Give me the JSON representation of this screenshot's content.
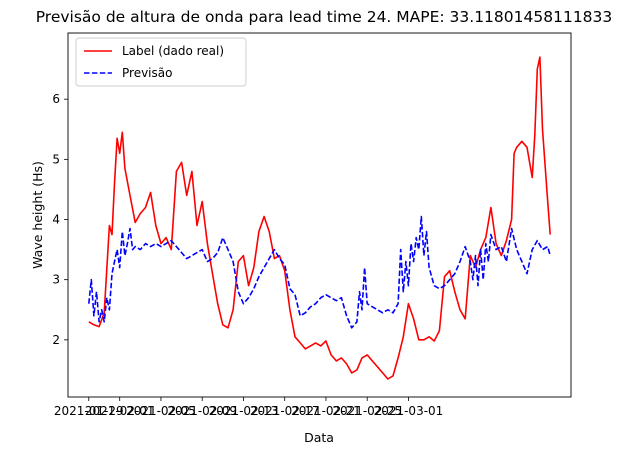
{
  "chart_data": {
    "type": "line",
    "title": "Previsão de altura de onda para lead time 24. MAPE: 33.11801458111833",
    "xlabel": "Data",
    "ylabel": "Wave height (Hs)",
    "x_ticks": [
      "2021-01-29",
      "2021-02-01",
      "2021-02-05",
      "2021-02-09",
      "2021-02-13",
      "2021-02-17",
      "2021-02-21",
      "2021-02-25",
      "2021-03-01"
    ],
    "y_ticks": [
      "2",
      "3",
      "4",
      "5",
      "6"
    ],
    "ylim": [
      1.05,
      7.1
    ],
    "legend_position": "top-left",
    "grid": false,
    "series": [
      {
        "name": "Label (dado real)",
        "color": "#ff0000",
        "style": "solid",
        "points": [
          [
            "2021-01-29T00",
            2.3
          ],
          [
            "2021-01-29T12",
            2.25
          ],
          [
            "2021-01-30T00",
            2.22
          ],
          [
            "2021-01-30T12",
            2.45
          ],
          [
            "2021-01-31T00",
            3.9
          ],
          [
            "2021-01-31T06",
            3.75
          ],
          [
            "2021-01-31T12",
            4.6
          ],
          [
            "2021-01-31T18",
            5.35
          ],
          [
            "2021-02-01T00",
            5.1
          ],
          [
            "2021-02-01T06",
            5.45
          ],
          [
            "2021-02-01T12",
            4.85
          ],
          [
            "2021-02-02T00",
            4.4
          ],
          [
            "2021-02-02T12",
            3.95
          ],
          [
            "2021-02-03T00",
            4.1
          ],
          [
            "2021-02-03T12",
            4.2
          ],
          [
            "2021-02-04T00",
            4.45
          ],
          [
            "2021-02-04T12",
            3.9
          ],
          [
            "2021-02-05T00",
            3.6
          ],
          [
            "2021-02-05T12",
            3.7
          ],
          [
            "2021-02-06T00",
            3.5
          ],
          [
            "2021-02-06T12",
            4.8
          ],
          [
            "2021-02-07T00",
            4.95
          ],
          [
            "2021-02-07T12",
            4.4
          ],
          [
            "2021-02-08T00",
            4.8
          ],
          [
            "2021-02-08T12",
            3.9
          ],
          [
            "2021-02-09T00",
            4.3
          ],
          [
            "2021-02-09T12",
            3.6
          ],
          [
            "2021-02-10T00",
            3.1
          ],
          [
            "2021-02-10T12",
            2.6
          ],
          [
            "2021-02-11T00",
            2.25
          ],
          [
            "2021-02-11T12",
            2.2
          ],
          [
            "2021-02-12T00",
            2.5
          ],
          [
            "2021-02-12T12",
            3.3
          ],
          [
            "2021-02-13T00",
            3.4
          ],
          [
            "2021-02-13T12",
            2.9
          ],
          [
            "2021-02-14T00",
            3.2
          ],
          [
            "2021-02-14T12",
            3.8
          ],
          [
            "2021-02-15T00",
            4.05
          ],
          [
            "2021-02-15T12",
            3.8
          ],
          [
            "2021-02-16T00",
            3.35
          ],
          [
            "2021-02-16T12",
            3.4
          ],
          [
            "2021-02-17T00",
            3.15
          ],
          [
            "2021-02-17T12",
            2.5
          ],
          [
            "2021-02-18T00",
            2.05
          ],
          [
            "2021-02-18T12",
            1.95
          ],
          [
            "2021-02-19T00",
            1.85
          ],
          [
            "2021-02-19T12",
            1.9
          ],
          [
            "2021-02-20T00",
            1.95
          ],
          [
            "2021-02-20T12",
            1.9
          ],
          [
            "2021-02-21T00",
            1.98
          ],
          [
            "2021-02-21T12",
            1.75
          ],
          [
            "2021-02-22T00",
            1.65
          ],
          [
            "2021-02-22T12",
            1.7
          ],
          [
            "2021-02-23T00",
            1.6
          ],
          [
            "2021-02-23T12",
            1.45
          ],
          [
            "2021-02-24T00",
            1.5
          ],
          [
            "2021-02-24T12",
            1.7
          ],
          [
            "2021-02-25T00",
            1.75
          ],
          [
            "2021-02-25T12",
            1.65
          ],
          [
            "2021-02-26T00",
            1.55
          ],
          [
            "2021-02-26T12",
            1.45
          ],
          [
            "2021-02-27T00",
            1.35
          ],
          [
            "2021-02-27T12",
            1.4
          ],
          [
            "2021-02-28T00",
            1.7
          ],
          [
            "2021-02-28T12",
            2.05
          ],
          [
            "2021-03-01T00",
            2.6
          ],
          [
            "2021-03-01T12",
            2.35
          ],
          [
            "2021-03-02T00",
            2.0
          ],
          [
            "2021-03-02T12",
            2.0
          ],
          [
            "2021-03-03T00",
            2.05
          ],
          [
            "2021-03-03T12",
            1.98
          ],
          [
            "2021-03-04T00",
            2.15
          ],
          [
            "2021-03-04T12",
            3.05
          ],
          [
            "2021-03-05T00",
            3.15
          ],
          [
            "2021-03-05T12",
            2.8
          ],
          [
            "2021-03-06T00",
            2.5
          ],
          [
            "2021-03-06T12",
            2.35
          ],
          [
            "2021-03-07T00",
            3.4
          ],
          [
            "2021-03-07T12",
            3.2
          ],
          [
            "2021-03-08T00",
            3.5
          ],
          [
            "2021-03-08T12",
            3.7
          ],
          [
            "2021-03-09T00",
            4.2
          ],
          [
            "2021-03-09T12",
            3.6
          ],
          [
            "2021-03-10T00",
            3.4
          ],
          [
            "2021-03-10T12",
            3.65
          ],
          [
            "2021-03-11T00",
            4.0
          ],
          [
            "2021-03-11T06",
            5.1
          ],
          [
            "2021-03-11T12",
            5.2
          ],
          [
            "2021-03-12T00",
            5.3
          ],
          [
            "2021-03-12T12",
            5.2
          ],
          [
            "2021-03-13T00",
            4.7
          ],
          [
            "2021-03-13T06",
            5.4
          ],
          [
            "2021-03-13T12",
            6.5
          ],
          [
            "2021-03-13T18",
            6.7
          ],
          [
            "2021-03-14T00",
            5.5
          ],
          [
            "2021-03-14T12",
            4.3
          ],
          [
            "2021-03-14T18",
            3.75
          ]
        ]
      },
      {
        "name": "Previsão",
        "color": "#0000ff",
        "style": "dashed",
        "points": [
          [
            "2021-01-29T00",
            2.6
          ],
          [
            "2021-01-29T06",
            3.0
          ],
          [
            "2021-01-29T12",
            2.4
          ],
          [
            "2021-01-29T18",
            2.8
          ],
          [
            "2021-01-30T00",
            2.3
          ],
          [
            "2021-01-30T06",
            2.5
          ],
          [
            "2021-01-30T12",
            2.3
          ],
          [
            "2021-01-30T18",
            2.7
          ],
          [
            "2021-01-31T00",
            2.5
          ],
          [
            "2021-01-31T06",
            3.1
          ],
          [
            "2021-01-31T12",
            3.3
          ],
          [
            "2021-01-31T18",
            3.5
          ],
          [
            "2021-02-01T00",
            3.2
          ],
          [
            "2021-02-01T06",
            3.8
          ],
          [
            "2021-02-01T12",
            3.4
          ],
          [
            "2021-02-01T18",
            3.6
          ],
          [
            "2021-02-02T00",
            3.85
          ],
          [
            "2021-02-02T06",
            3.5
          ],
          [
            "2021-02-02T12",
            3.55
          ],
          [
            "2021-02-03T00",
            3.5
          ],
          [
            "2021-02-03T12",
            3.6
          ],
          [
            "2021-02-04T00",
            3.55
          ],
          [
            "2021-02-04T12",
            3.6
          ],
          [
            "2021-02-05T00",
            3.55
          ],
          [
            "2021-02-05T12",
            3.6
          ],
          [
            "2021-02-06T00",
            3.65
          ],
          [
            "2021-02-06T12",
            3.55
          ],
          [
            "2021-02-07T00",
            3.45
          ],
          [
            "2021-02-07T12",
            3.35
          ],
          [
            "2021-02-08T00",
            3.4
          ],
          [
            "2021-02-08T12",
            3.45
          ],
          [
            "2021-02-09T00",
            3.5
          ],
          [
            "2021-02-09T12",
            3.3
          ],
          [
            "2021-02-10T00",
            3.35
          ],
          [
            "2021-02-10T12",
            3.45
          ],
          [
            "2021-02-11T00",
            3.7
          ],
          [
            "2021-02-11T12",
            3.5
          ],
          [
            "2021-02-12T00",
            3.3
          ],
          [
            "2021-02-12T12",
            2.8
          ],
          [
            "2021-02-13T00",
            2.6
          ],
          [
            "2021-02-13T12",
            2.7
          ],
          [
            "2021-02-14T00",
            2.85
          ],
          [
            "2021-02-14T12",
            3.05
          ],
          [
            "2021-02-15T00",
            3.2
          ],
          [
            "2021-02-15T12",
            3.35
          ],
          [
            "2021-02-16T00",
            3.5
          ],
          [
            "2021-02-16T12",
            3.35
          ],
          [
            "2021-02-17T00",
            3.25
          ],
          [
            "2021-02-17T12",
            2.85
          ],
          [
            "2021-02-18T00",
            2.75
          ],
          [
            "2021-02-18T12",
            2.4
          ],
          [
            "2021-02-19T00",
            2.45
          ],
          [
            "2021-02-19T12",
            2.55
          ],
          [
            "2021-02-20T00",
            2.6
          ],
          [
            "2021-02-20T12",
            2.7
          ],
          [
            "2021-02-21T00",
            2.75
          ],
          [
            "2021-02-21T12",
            2.7
          ],
          [
            "2021-02-22T00",
            2.65
          ],
          [
            "2021-02-22T12",
            2.7
          ],
          [
            "2021-02-23T00",
            2.4
          ],
          [
            "2021-02-23T12",
            2.2
          ],
          [
            "2021-02-24T00",
            2.3
          ],
          [
            "2021-02-24T06",
            2.8
          ],
          [
            "2021-02-24T12",
            2.5
          ],
          [
            "2021-02-24T18",
            3.2
          ],
          [
            "2021-02-25T00",
            2.6
          ],
          [
            "2021-02-25T12",
            2.55
          ],
          [
            "2021-02-26T00",
            2.5
          ],
          [
            "2021-02-26T12",
            2.45
          ],
          [
            "2021-02-27T00",
            2.5
          ],
          [
            "2021-02-27T12",
            2.45
          ],
          [
            "2021-02-28T00",
            2.6
          ],
          [
            "2021-02-28T06",
            3.5
          ],
          [
            "2021-02-28T12",
            2.8
          ],
          [
            "2021-02-28T18",
            3.3
          ],
          [
            "2021-03-01T00",
            2.9
          ],
          [
            "2021-03-01T06",
            3.6
          ],
          [
            "2021-03-01T12",
            3.3
          ],
          [
            "2021-03-01T18",
            3.7
          ],
          [
            "2021-03-02T00",
            3.5
          ],
          [
            "2021-03-02T06",
            4.05
          ],
          [
            "2021-03-02T12",
            3.4
          ],
          [
            "2021-03-02T18",
            3.8
          ],
          [
            "2021-03-03T00",
            3.2
          ],
          [
            "2021-03-03T12",
            2.9
          ],
          [
            "2021-03-04T00",
            2.85
          ],
          [
            "2021-03-04T12",
            2.9
          ],
          [
            "2021-03-05T00",
            3.0
          ],
          [
            "2021-03-05T12",
            3.1
          ],
          [
            "2021-03-06T00",
            3.3
          ],
          [
            "2021-03-06T12",
            3.55
          ],
          [
            "2021-03-07T00",
            3.3
          ],
          [
            "2021-03-07T06",
            3.0
          ],
          [
            "2021-03-07T12",
            3.4
          ],
          [
            "2021-03-07T18",
            2.9
          ],
          [
            "2021-03-08T00",
            3.5
          ],
          [
            "2021-03-08T06",
            3.0
          ],
          [
            "2021-03-08T12",
            3.6
          ],
          [
            "2021-03-08T18",
            3.3
          ],
          [
            "2021-03-09T00",
            3.75
          ],
          [
            "2021-03-09T12",
            3.5
          ],
          [
            "2021-03-10T00",
            3.55
          ],
          [
            "2021-03-10T12",
            3.3
          ],
          [
            "2021-03-11T00",
            3.85
          ],
          [
            "2021-03-11T12",
            3.5
          ],
          [
            "2021-03-12T00",
            3.3
          ],
          [
            "2021-03-12T12",
            3.1
          ],
          [
            "2021-03-13T00",
            3.5
          ],
          [
            "2021-03-13T12",
            3.65
          ],
          [
            "2021-03-14T00",
            3.5
          ],
          [
            "2021-03-14T12",
            3.55
          ],
          [
            "2021-03-14T18",
            3.4
          ]
        ]
      }
    ]
  }
}
